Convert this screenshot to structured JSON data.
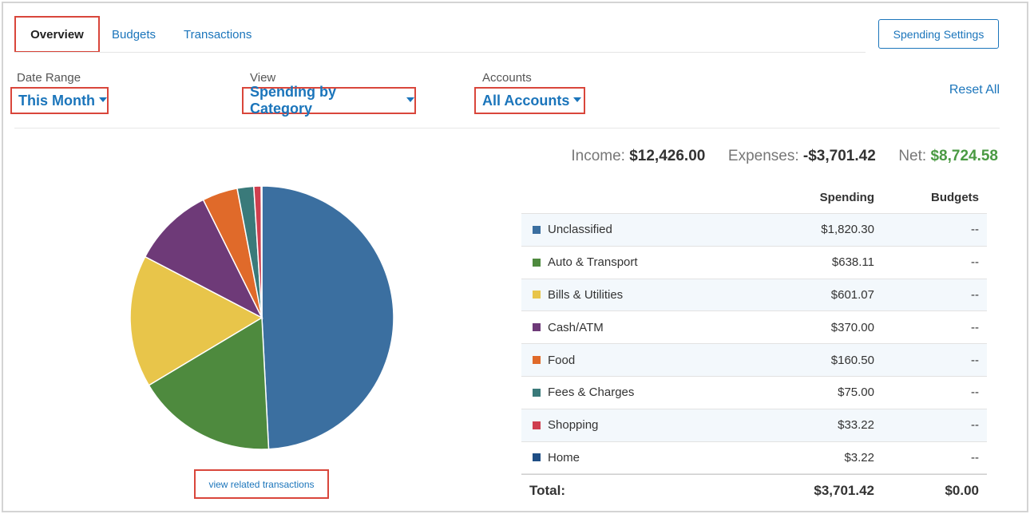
{
  "tabs": [
    {
      "label": "Overview",
      "active": true
    },
    {
      "label": "Budgets",
      "active": false
    },
    {
      "label": "Transactions",
      "active": false
    }
  ],
  "settings_button": "Spending Settings",
  "filters": {
    "date_range": {
      "label": "Date Range",
      "value": "This Month"
    },
    "view": {
      "label": "View",
      "value": "Spending by Category"
    },
    "accounts": {
      "label": "Accounts",
      "value": "All Accounts"
    }
  },
  "reset_all": "Reset All",
  "summary": {
    "income_label": "Income:",
    "income": "$12,426.00",
    "expenses_label": "Expenses:",
    "expenses": "-$3,701.42",
    "net_label": "Net:",
    "net": "$8,724.58",
    "net_color": "#4a9a43"
  },
  "table": {
    "headers": {
      "spending": "Spending",
      "budgets": "Budgets"
    },
    "rows": [
      {
        "name": "Unclassified",
        "spending": "$1,820.30",
        "budget": "--",
        "color": "#3b6fa0"
      },
      {
        "name": "Auto & Transport",
        "spending": "$638.11",
        "budget": "--",
        "color": "#4e8a3e"
      },
      {
        "name": "Bills & Utilities",
        "spending": "$601.07",
        "budget": "--",
        "color": "#e8c54a"
      },
      {
        "name": "Cash/ATM",
        "spending": "$370.00",
        "budget": "--",
        "color": "#6e3a78"
      },
      {
        "name": "Food",
        "spending": "$160.50",
        "budget": "--",
        "color": "#e06a2a"
      },
      {
        "name": "Fees & Charges",
        "spending": "$75.00",
        "budget": "--",
        "color": "#3a7a7a"
      },
      {
        "name": "Shopping",
        "spending": "$33.22",
        "budget": "--",
        "color": "#cf3f4f"
      },
      {
        "name": "Home",
        "spending": "$3.22",
        "budget": "--",
        "color": "#1f4e85"
      }
    ],
    "total": {
      "label": "Total:",
      "spending": "$3,701.42",
      "budget": "$0.00"
    }
  },
  "view_related_transactions": "view related transactions",
  "chart_data": {
    "type": "pie",
    "categories": [
      "Unclassified",
      "Auto & Transport",
      "Bills & Utilities",
      "Cash/ATM",
      "Food",
      "Fees & Charges",
      "Shopping",
      "Home"
    ],
    "values": [
      1820.3,
      638.11,
      601.07,
      370.0,
      160.5,
      75.0,
      33.22,
      3.22
    ],
    "colors": [
      "#3b6fa0",
      "#4e8a3e",
      "#e8c54a",
      "#6e3a78",
      "#e06a2a",
      "#3a7a7a",
      "#cf3f4f",
      "#1f4e85"
    ]
  }
}
